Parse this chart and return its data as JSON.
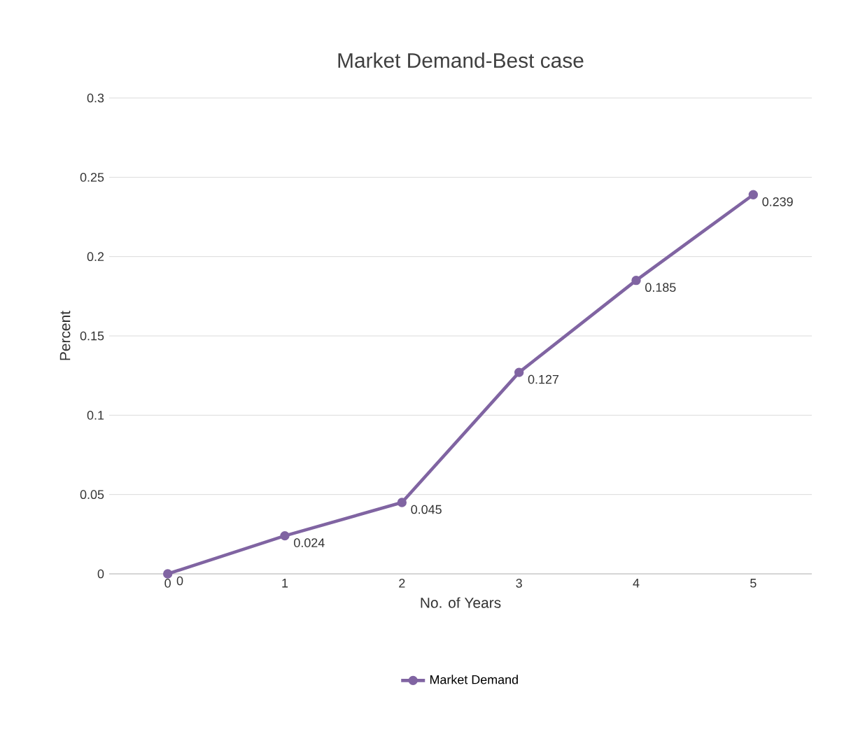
{
  "chart_data": {
    "type": "line",
    "title": "Market Demand-Best case",
    "xlabel": "No. of  Years",
    "ylabel": "Percent",
    "categories": [
      "0",
      "1",
      "2",
      "3",
      "4",
      "5"
    ],
    "series": [
      {
        "name": "Market Demand",
        "color": "#8064a2",
        "values": [
          0,
          0.024,
          0.045,
          0.127,
          0.185,
          0.239
        ]
      }
    ],
    "ylim": [
      0,
      0.3
    ],
    "yticks": [
      0,
      0.05,
      0.1,
      0.15,
      0.2,
      0.25,
      0.3
    ],
    "grid": "y",
    "legend": "bottom",
    "marker": "circle",
    "line_style": "solid",
    "data_labels": true
  }
}
